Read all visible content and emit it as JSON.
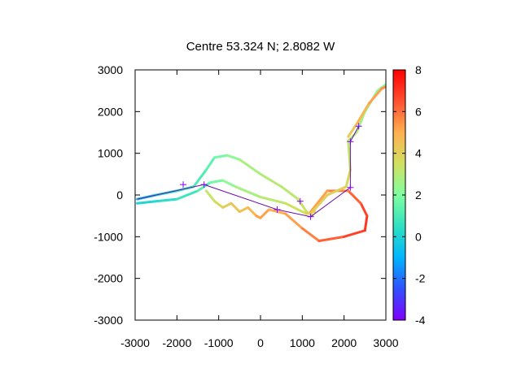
{
  "chart_data": {
    "type": "line",
    "title": "Centre 53.324 N; 2.8082  W",
    "xlabel": "",
    "ylabel": "",
    "xlim": [
      -3000,
      3000
    ],
    "ylim": [
      -3000,
      3000
    ],
    "x_ticks": [
      -3000,
      -2000,
      -1000,
      0,
      1000,
      2000,
      3000
    ],
    "x_tick_labels": [
      "-3000",
      "-2000",
      "-1000",
      "0",
      "1000",
      "2000",
      "3000"
    ],
    "y_ticks": [
      -3000,
      -2000,
      -1000,
      0,
      1000,
      2000,
      3000
    ],
    "y_tick_labels": [
      "-3000",
      "-2000",
      "-1000",
      "0",
      "1000",
      "2000",
      "3000"
    ],
    "colorbar": {
      "range": [
        -4,
        8
      ],
      "ticks": [
        -4,
        -2,
        0,
        2,
        4,
        6,
        8
      ],
      "tick_labels": [
        "-4",
        "-2",
        "0",
        "2",
        "4",
        "6",
        "8"
      ],
      "palette": [
        "#8000ff",
        "#3050ff",
        "#00b5ff",
        "#30e0c0",
        "#80ffa0",
        "#d0e060",
        "#ffb050",
        "#ff5030",
        "#ff0000"
      ]
    },
    "grid": false,
    "series": [
      {
        "points": [
          {
            "x": -2950,
            "y": -100,
            "c": -0.5
          },
          {
            "x": -2500,
            "y": 0,
            "c": 0
          },
          {
            "x": -2000,
            "y": 100,
            "c": 0.5
          },
          {
            "x": -1600,
            "y": 200,
            "c": 1
          },
          {
            "x": -1300,
            "y": 600,
            "c": 1.2
          },
          {
            "x": -1100,
            "y": 900,
            "c": 1.5
          },
          {
            "x": -800,
            "y": 950,
            "c": 2
          },
          {
            "x": -500,
            "y": 850,
            "c": 2.5
          },
          {
            "x": 0,
            "y": 500,
            "c": 3
          },
          {
            "x": 500,
            "y": 200,
            "c": 3
          },
          {
            "x": 900,
            "y": -100,
            "c": 3.2
          },
          {
            "x": 1100,
            "y": -400,
            "c": 3.5
          },
          {
            "x": 1250,
            "y": -500,
            "c": 4
          }
        ]
      },
      {
        "points": [
          {
            "x": -2950,
            "y": -200,
            "c": 0
          },
          {
            "x": -2500,
            "y": -150,
            "c": 0.2
          },
          {
            "x": -2000,
            "y": -100,
            "c": 0.5
          },
          {
            "x": -1500,
            "y": 100,
            "c": 1
          },
          {
            "x": -1200,
            "y": 300,
            "c": 1.5
          },
          {
            "x": -900,
            "y": 350,
            "c": 2
          },
          {
            "x": -600,
            "y": 200,
            "c": 2.5
          },
          {
            "x": 0,
            "y": -50,
            "c": 3
          },
          {
            "x": 600,
            "y": -200,
            "c": 3.2
          },
          {
            "x": 1100,
            "y": -450,
            "c": 3.8
          },
          {
            "x": 1300,
            "y": -400,
            "c": 4
          }
        ]
      },
      {
        "points": [
          {
            "x": -1300,
            "y": 100,
            "c": 3
          },
          {
            "x": -1100,
            "y": -150,
            "c": 3.5
          },
          {
            "x": -900,
            "y": -300,
            "c": 4
          },
          {
            "x": -700,
            "y": -200,
            "c": 4.2
          },
          {
            "x": -500,
            "y": -400,
            "c": 4.5
          },
          {
            "x": -300,
            "y": -300,
            "c": 4.5
          },
          {
            "x": -100,
            "y": -500,
            "c": 5
          },
          {
            "x": 0,
            "y": -550,
            "c": 5.5
          },
          {
            "x": 200,
            "y": -350,
            "c": 5
          },
          {
            "x": 600,
            "y": -450,
            "c": 5
          },
          {
            "x": 1000,
            "y": -800,
            "c": 5.5
          },
          {
            "x": 1400,
            "y": -1100,
            "c": 6
          },
          {
            "x": 2000,
            "y": -1000,
            "c": 6.5
          },
          {
            "x": 2500,
            "y": -850,
            "c": 7
          },
          {
            "x": 2550,
            "y": -500,
            "c": 7
          },
          {
            "x": 2400,
            "y": -200,
            "c": 6.5
          },
          {
            "x": 2100,
            "y": 100,
            "c": 6
          },
          {
            "x": 1600,
            "y": 100,
            "c": 5.5
          },
          {
            "x": 1200,
            "y": -400,
            "c": 5
          }
        ]
      },
      {
        "points": [
          {
            "x": 1200,
            "y": -450,
            "c": 4
          },
          {
            "x": 1600,
            "y": 0,
            "c": 4
          },
          {
            "x": 2050,
            "y": 200,
            "c": 4
          },
          {
            "x": 2150,
            "y": 600,
            "c": 3.5
          },
          {
            "x": 2100,
            "y": 1300,
            "c": 3
          },
          {
            "x": 2300,
            "y": 1500,
            "c": 3
          },
          {
            "x": 2500,
            "y": 2000,
            "c": 2.5
          },
          {
            "x": 2800,
            "y": 2500,
            "c": 2
          },
          {
            "x": 3000,
            "y": 2650,
            "c": 2
          }
        ]
      },
      {
        "points": [
          {
            "x": 2100,
            "y": 1400,
            "c": 4
          },
          {
            "x": 2300,
            "y": 1700,
            "c": 4.5
          },
          {
            "x": 2600,
            "y": 2200,
            "c": 5
          },
          {
            "x": 2900,
            "y": 2550,
            "c": 5.5
          },
          {
            "x": 3000,
            "y": 2600,
            "c": 5.5
          }
        ]
      }
    ],
    "path": {
      "x": [
        -2950,
        -1350,
        400,
        1200,
        2150,
        2150,
        2350
      ],
      "y": [
        -100,
        250,
        -350,
        -520,
        180,
        1280,
        1650
      ]
    },
    "markers": {
      "x": [
        -1850,
        -1350,
        400,
        950,
        1200,
        2150,
        2150,
        2350
      ],
      "y": [
        250,
        250,
        -350,
        -150,
        -520,
        180,
        1280,
        1650
      ]
    }
  }
}
